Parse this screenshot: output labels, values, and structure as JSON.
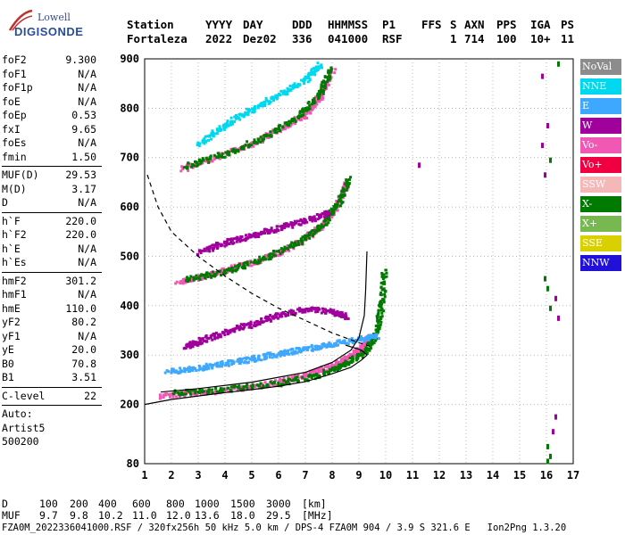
{
  "logo": {
    "brand": "Lowell",
    "sub": "DIGISONDE"
  },
  "header": {
    "row1": [
      "Station",
      "YYYY",
      "DAY",
      "DDD",
      "HHMMSS",
      "P1",
      "FFS",
      "S",
      "AXN",
      "PPS",
      "IGA",
      "PS"
    ],
    "row2": [
      "Fortaleza",
      "2022",
      "Dez02",
      "336",
      "041000",
      "RSF",
      "",
      "1",
      "714",
      "100",
      "10+",
      "11"
    ]
  },
  "params": [
    [
      {
        "name": "foF2",
        "value": "9.300"
      },
      {
        "name": "foF1",
        "value": "N/A"
      },
      {
        "name": "foF1p",
        "value": "N/A"
      },
      {
        "name": "foE",
        "value": "N/A"
      },
      {
        "name": "foEp",
        "value": "0.53"
      },
      {
        "name": "fxI",
        "value": "9.65"
      },
      {
        "name": "foEs",
        "value": "N/A"
      },
      {
        "name": "fmin",
        "value": "1.50"
      }
    ],
    [
      {
        "name": "MUF(D)",
        "value": "29.53"
      },
      {
        "name": "M(D)",
        "value": "3.17"
      },
      {
        "name": "D",
        "value": "N/A"
      }
    ],
    [
      {
        "name": "h`F",
        "value": "220.0"
      },
      {
        "name": "h`F2",
        "value": "220.0"
      },
      {
        "name": "h`E",
        "value": "N/A"
      },
      {
        "name": "h`Es",
        "value": "N/A"
      }
    ],
    [
      {
        "name": "hmF2",
        "value": "301.2"
      },
      {
        "name": "hmF1",
        "value": "N/A"
      },
      {
        "name": "hmE",
        "value": "110.0"
      },
      {
        "name": "yF2",
        "value": "80.2"
      },
      {
        "name": "yF1",
        "value": "N/A"
      },
      {
        "name": "yE",
        "value": "20.0"
      },
      {
        "name": "B0",
        "value": "70.8"
      },
      {
        "name": "B1",
        "value": "3.51"
      }
    ],
    [
      {
        "name": "C-level",
        "value": "22"
      }
    ]
  ],
  "misc": {
    "auto": "Auto:",
    "artist": "Artist5",
    "version": "500200"
  },
  "legend": [
    {
      "label": "NoVal",
      "color": "#8c8c8c"
    },
    {
      "label": "NNE",
      "color": "#00d8f0"
    },
    {
      "label": "E",
      "color": "#3ea8ff"
    },
    {
      "label": "W",
      "color": "#a0009c"
    },
    {
      "label": "Vo-",
      "color": "#f058b4"
    },
    {
      "label": "Vo+",
      "color": "#f00040"
    },
    {
      "label": "SSW",
      "color": "#f4b8b8"
    },
    {
      "label": "X-",
      "color": "#007a00"
    },
    {
      "label": "X+",
      "color": "#78b850"
    },
    {
      "label": "SSE",
      "color": "#d8d000"
    },
    {
      "label": "NNW",
      "color": "#2010d8"
    }
  ],
  "footer": {
    "d_label": "D",
    "d_values": [
      "100",
      "200",
      "400",
      "600",
      "800",
      "1000",
      "1500",
      "3000",
      "[km]"
    ],
    "muf_label": "MUF",
    "muf_values": [
      "9.7",
      "9.8",
      "10.2",
      "11.0",
      "12.0",
      "13.6",
      "18.0",
      "29.5",
      "[MHz]"
    ],
    "line3": "FZA0M_2022336041000.RSF / 320fx256h 50 kHz 5.0 km / DPS-4 FZA0M 904 / 3.9 S 321.6 E   Ion2Png 1.3.20"
  },
  "chart_data": {
    "type": "scatter",
    "title": "",
    "xlabel": "",
    "ylabel": "",
    "xlim": [
      1,
      17
    ],
    "ylim": [
      80,
      900
    ],
    "x_ticks": [
      1,
      2,
      3,
      4,
      5,
      6,
      7,
      8,
      9,
      10,
      11,
      12,
      13,
      14,
      15,
      16,
      17
    ],
    "y_ticks": [
      80,
      200,
      300,
      400,
      500,
      600,
      700,
      800,
      900
    ],
    "grid": true,
    "traces": [
      {
        "name": "O-trace F2 (1st hop)",
        "color": "#f058b4",
        "points": [
          [
            1.5,
            220
          ],
          [
            3,
            226
          ],
          [
            4.5,
            235
          ],
          [
            6,
            248
          ],
          [
            7,
            262
          ],
          [
            8,
            280
          ],
          [
            8.5,
            295
          ],
          [
            9,
            315
          ],
          [
            9.3,
            335
          ]
        ]
      },
      {
        "name": "X-trace F2 (1st hop)",
        "color": "#007a00",
        "points": [
          [
            2,
            225
          ],
          [
            4,
            232
          ],
          [
            6,
            245
          ],
          [
            7.5,
            262
          ],
          [
            8.5,
            285
          ],
          [
            9.2,
            310
          ],
          [
            9.6,
            345
          ],
          [
            9.8,
            400
          ],
          [
            9.9,
            470
          ]
        ]
      },
      {
        "name": "E-echo band",
        "color": "#3ea8ff",
        "points": [
          [
            1.8,
            268
          ],
          [
            3,
            276
          ],
          [
            4,
            285
          ],
          [
            5,
            295
          ],
          [
            6,
            305
          ],
          [
            7,
            315
          ],
          [
            8,
            325
          ],
          [
            9,
            335
          ],
          [
            9.6,
            340
          ]
        ]
      },
      {
        "name": "W spread",
        "color": "#a0009c",
        "points": [
          [
            2.5,
            320
          ],
          [
            3,
            330
          ],
          [
            4,
            350
          ],
          [
            5,
            365
          ],
          [
            6,
            385
          ],
          [
            7,
            395
          ],
          [
            8,
            390
          ],
          [
            8.5,
            380
          ]
        ]
      },
      {
        "name": "O-trace F2 (2nd hop)",
        "color": "#f058b4",
        "points": [
          [
            2.2,
            450
          ],
          [
            3,
            460
          ],
          [
            4,
            475
          ],
          [
            5,
            490
          ],
          [
            6,
            510
          ],
          [
            7,
            540
          ],
          [
            7.6,
            565
          ],
          [
            8.1,
            600
          ],
          [
            8.5,
            650
          ]
        ]
      },
      {
        "name": "X-trace F2 (2nd hop)",
        "color": "#007a00",
        "points": [
          [
            2.5,
            455
          ],
          [
            4,
            472
          ],
          [
            5.5,
            500
          ],
          [
            6.7,
            530
          ],
          [
            7.6,
            565
          ],
          [
            8.2,
            610
          ],
          [
            8.6,
            660
          ]
        ]
      },
      {
        "name": "2nd hop spread",
        "color": "#a0009c",
        "points": [
          [
            3,
            510
          ],
          [
            4,
            530
          ],
          [
            5,
            545
          ],
          [
            6,
            560
          ],
          [
            7,
            575
          ],
          [
            7.8,
            590
          ]
        ]
      },
      {
        "name": "O-trace F2 (3rd hop)",
        "color": "#f058b4",
        "points": [
          [
            2.4,
            680
          ],
          [
            3.5,
            700
          ],
          [
            5,
            730
          ],
          [
            6,
            760
          ],
          [
            7,
            790
          ],
          [
            7.5,
            825
          ],
          [
            8,
            880
          ]
        ]
      },
      {
        "name": "X-trace F2 (3rd hop)",
        "color": "#007a00",
        "points": [
          [
            2.5,
            685
          ],
          [
            4,
            710
          ],
          [
            5.5,
            745
          ],
          [
            6.7,
            785
          ],
          [
            7.5,
            830
          ],
          [
            7.9,
            880
          ]
        ]
      },
      {
        "name": "3rd hop spread",
        "color": "#00d8f0",
        "points": [
          [
            3,
            730
          ],
          [
            4,
            770
          ],
          [
            5,
            800
          ],
          [
            6,
            830
          ],
          [
            7,
            860
          ],
          [
            7.5,
            890
          ]
        ]
      },
      {
        "name": "right edge echoes",
        "color": "#007a00",
        "points": [
          [
            15.9,
            460
          ],
          [
            16,
            440
          ],
          [
            16.1,
            400
          ],
          [
            16,
            120
          ],
          [
            16.1,
            100
          ],
          [
            16,
            90
          ],
          [
            16.1,
            700
          ],
          [
            16.4,
            895
          ]
        ]
      },
      {
        "name": "right edge echoes 2",
        "color": "#a0009c",
        "points": [
          [
            15.8,
            870
          ],
          [
            16,
            770
          ],
          [
            16.3,
            420
          ],
          [
            16.4,
            380
          ],
          [
            16.2,
            150
          ],
          [
            16.3,
            180
          ],
          [
            11.2,
            690
          ],
          [
            15.8,
            730
          ],
          [
            15.9,
            670
          ]
        ]
      }
    ],
    "profile_curve": {
      "name": "electron density profile",
      "color": "#000000",
      "points": [
        [
          1,
          200
        ],
        [
          2,
          210
        ],
        [
          3,
          217
        ],
        [
          4,
          224
        ],
        [
          5,
          230
        ],
        [
          6,
          237
        ],
        [
          7,
          246
        ],
        [
          8,
          262
        ],
        [
          8.7,
          275
        ],
        [
          9.1,
          290
        ],
        [
          9.3,
          300
        ],
        [
          9.1,
          310
        ],
        [
          8.5,
          320
        ]
      ]
    },
    "fit_curve": {
      "name": "model trace",
      "color": "#000000",
      "points": [
        [
          1.6,
          225
        ],
        [
          3,
          232
        ],
        [
          5,
          245
        ],
        [
          7,
          265
        ],
        [
          8,
          285
        ],
        [
          8.7,
          310
        ],
        [
          9,
          335
        ],
        [
          9.2,
          380
        ],
        [
          9.25,
          430
        ],
        [
          9.3,
          510
        ]
      ]
    },
    "mufd_curve": {
      "name": "MUF(D) curve",
      "color": "#000000",
      "dashed": true,
      "points": [
        [
          1.1,
          665
        ],
        [
          1.5,
          600
        ],
        [
          2,
          550
        ],
        [
          3,
          500
        ],
        [
          4,
          460
        ],
        [
          5,
          425
        ],
        [
          6,
          395
        ],
        [
          7,
          370
        ],
        [
          8,
          345
        ],
        [
          9,
          325
        ],
        [
          9.4,
          318
        ]
      ]
    }
  }
}
